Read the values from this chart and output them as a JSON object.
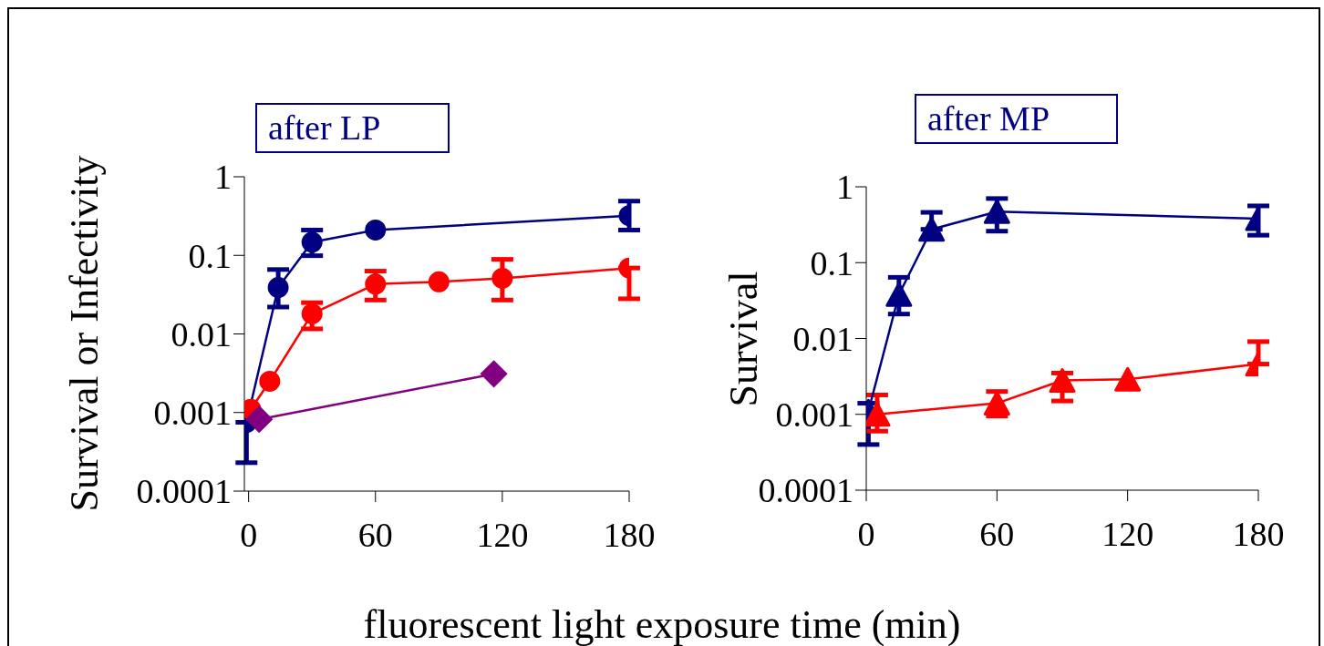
{
  "chart_data": [
    {
      "type": "line",
      "title": "after LP",
      "ylabel": "Survival or Infectivity",
      "xlabel": "fluorescent light exposure time (min)",
      "log": "y",
      "xlim": [
        -2,
        180
      ],
      "xticks": [
        0,
        60,
        120,
        180
      ],
      "ylim": [
        0.0001,
        1
      ],
      "yticks": [
        0.0001,
        0.001,
        0.01,
        0.1,
        1
      ],
      "grid": false,
      "legend": false,
      "series": [
        {
          "color": "#000080",
          "marker": "circle",
          "x": [
            -1,
            14,
            30,
            60,
            180
          ],
          "values": [
            0.00075,
            0.039,
            0.147,
            0.21,
            0.32
          ],
          "errors": [
            [
              0.00023,
              0.00075
            ],
            [
              0.022,
              0.066
            ],
            [
              0.099,
              0.21
            ],
            null,
            [
              0.21,
              0.49
            ]
          ]
        },
        {
          "color": "#ff0000",
          "marker": "circle",
          "x": [
            1,
            10,
            30,
            60,
            90,
            120,
            180
          ],
          "values": [
            0.0011,
            0.0025,
            0.018,
            0.043,
            0.046,
            0.051,
            0.069
          ],
          "errors": [
            null,
            null,
            [
              0.0116,
              0.025
            ],
            [
              0.027,
              0.063
            ],
            null,
            [
              0.027,
              0.089
            ],
            [
              0.028,
              0.069
            ]
          ]
        },
        {
          "color": "#800080",
          "marker": "diamond",
          "x": [
            5,
            116
          ],
          "values": [
            0.00082,
            0.0031
          ]
        }
      ]
    },
    {
      "type": "line",
      "title": "after MP",
      "ylabel": "Survival",
      "log": "y",
      "xlim": [
        0,
        180
      ],
      "xticks": [
        0,
        60,
        120,
        180
      ],
      "ylim": [
        0.0001,
        1
      ],
      "yticks": [
        0.0001,
        0.001,
        0.01,
        0.1,
        1
      ],
      "grid": false,
      "legend": false,
      "series": [
        {
          "color": "#000080",
          "marker": "triangle",
          "x": [
            1,
            15,
            30,
            60,
            180
          ],
          "values": [
            0.0011,
            0.038,
            0.275,
            0.47,
            0.38
          ],
          "errors": [
            [
              0.0004,
              0.0014
            ],
            [
              0.021,
              0.064
            ],
            [
              0.275,
              0.46
            ],
            [
              0.26,
              0.7
            ],
            [
              0.23,
              0.56
            ]
          ]
        },
        {
          "color": "#ff0000",
          "marker": "triangle",
          "x": [
            5,
            60,
            90,
            120,
            180
          ],
          "values": [
            0.001,
            0.0014,
            0.0028,
            0.0029,
            0.0046
          ],
          "errors": [
            [
              0.0006,
              0.0018
            ],
            [
              0.00095,
              0.002
            ],
            [
              0.0015,
              0.0035
            ],
            null,
            [
              0.0046,
              0.0091
            ]
          ]
        }
      ]
    }
  ]
}
